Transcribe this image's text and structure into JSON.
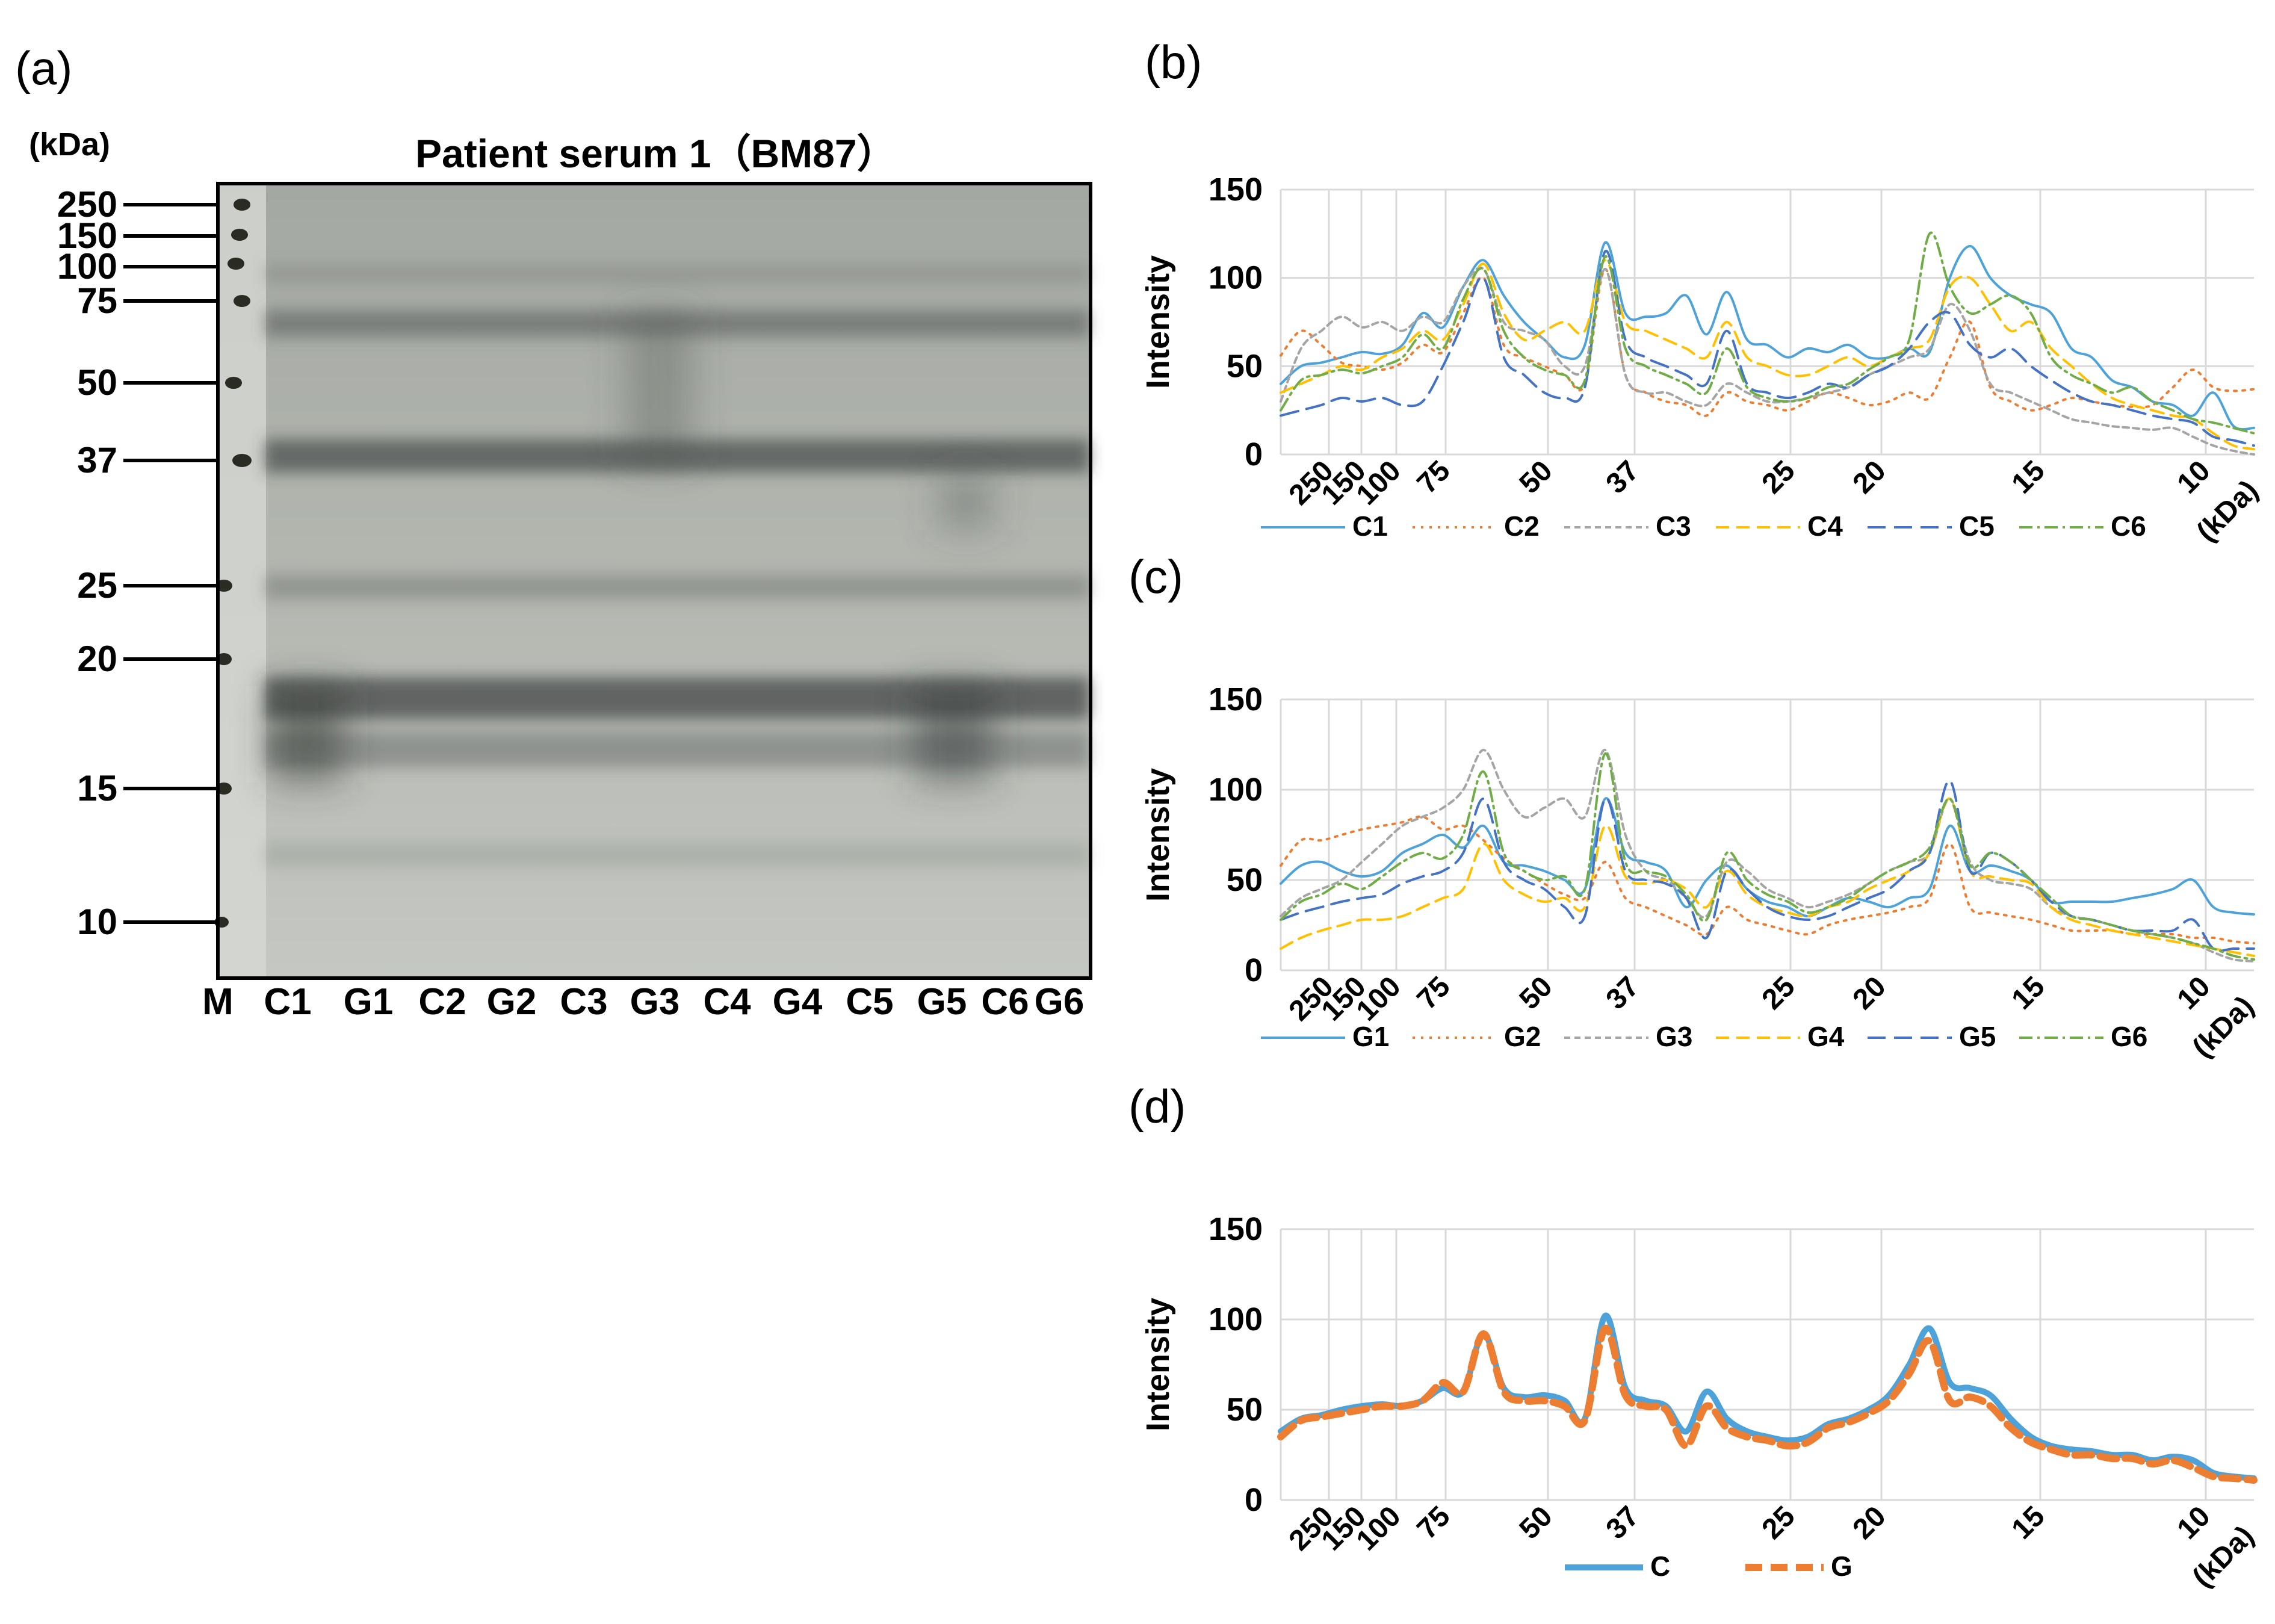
{
  "panel_a": {
    "label": "(a)",
    "unit": "(kDa)",
    "title": "Patient serum 1（BM87）",
    "markers": [
      "250",
      "150",
      "100",
      "75",
      "50",
      "37",
      "25",
      "20",
      "15",
      "10"
    ],
    "lanes": [
      "M",
      "C1",
      "G1",
      "C2",
      "G2",
      "C3",
      "G3",
      "C4",
      "G4",
      "C5",
      "G5",
      "C6",
      "G6"
    ]
  },
  "chart_data": [
    {
      "type": "line",
      "panel": "(b)",
      "ylabel": "Intensity",
      "ylim": [
        0,
        150
      ],
      "yticks": [
        "0",
        "50",
        "100",
        "150"
      ],
      "xticks": [
        "250",
        "150",
        "100",
        "75",
        "50",
        "37",
        "25",
        "20",
        "15",
        "10"
      ],
      "xunit": "(kDa)",
      "series": [
        {
          "name": "C1",
          "color": "#4da3d9",
          "dash": "",
          "width": 4,
          "values": [
            40,
            50,
            52,
            55,
            58,
            57,
            62,
            80,
            72,
            95,
            110,
            90,
            75,
            65,
            55,
            62,
            120,
            80,
            78,
            80,
            90,
            68,
            92,
            65,
            62,
            55,
            60,
            58,
            62,
            55,
            55,
            60,
            58,
            100,
            118,
            100,
            90,
            85,
            80,
            60,
            55,
            42,
            38,
            30,
            28,
            22,
            35,
            16,
            15
          ]
        },
        {
          "name": "C2",
          "color": "#ed7d31",
          "dash": "4 10",
          "width": 4,
          "values": [
            56,
            70,
            62,
            52,
            50,
            48,
            52,
            62,
            58,
            80,
            100,
            62,
            55,
            50,
            45,
            40,
            105,
            45,
            35,
            30,
            28,
            22,
            35,
            30,
            28,
            25,
            30,
            35,
            32,
            28,
            30,
            35,
            32,
            55,
            75,
            38,
            30,
            25,
            28,
            32,
            30,
            28,
            27,
            28,
            38,
            48,
            38,
            36,
            37
          ]
        },
        {
          "name": "C3",
          "color": "#a5a5a5",
          "dash": "10 7",
          "width": 4,
          "values": [
            30,
            60,
            70,
            78,
            72,
            75,
            70,
            78,
            75,
            95,
            105,
            75,
            70,
            65,
            50,
            50,
            105,
            45,
            35,
            35,
            30,
            28,
            40,
            35,
            30,
            30,
            32,
            35,
            38,
            45,
            50,
            55,
            60,
            85,
            70,
            40,
            35,
            30,
            25,
            20,
            18,
            16,
            15,
            14,
            15,
            10,
            5,
            2,
            0
          ]
        },
        {
          "name": "C4",
          "color": "#ffc000",
          "dash": "22 12",
          "width": 4,
          "values": [
            35,
            40,
            45,
            50,
            48,
            55,
            60,
            70,
            65,
            85,
            108,
            80,
            65,
            70,
            75,
            70,
            110,
            75,
            70,
            65,
            60,
            55,
            75,
            55,
            50,
            45,
            45,
            50,
            55,
            50,
            55,
            60,
            65,
            95,
            100,
            85,
            70,
            75,
            60,
            50,
            40,
            32,
            28,
            25,
            22,
            20,
            12,
            5,
            3
          ]
        },
        {
          "name": "C5",
          "color": "#4472c4",
          "dash": "30 14",
          "width": 4,
          "values": [
            22,
            25,
            28,
            32,
            30,
            32,
            28,
            30,
            50,
            75,
            100,
            55,
            45,
            35,
            32,
            38,
            115,
            65,
            55,
            50,
            45,
            40,
            70,
            40,
            35,
            32,
            35,
            40,
            38,
            45,
            50,
            60,
            75,
            80,
            62,
            55,
            60,
            50,
            42,
            35,
            30,
            28,
            25,
            22,
            20,
            18,
            10,
            8,
            5
          ]
        },
        {
          "name": "C6",
          "color": "#70ad47",
          "dash": "22 8 4 8",
          "width": 4,
          "values": [
            25,
            42,
            45,
            48,
            46,
            50,
            55,
            68,
            60,
            88,
            105,
            70,
            55,
            48,
            45,
            42,
            112,
            60,
            50,
            45,
            40,
            35,
            60,
            38,
            32,
            30,
            32,
            38,
            40,
            48,
            55,
            65,
            125,
            95,
            80,
            85,
            90,
            80,
            55,
            45,
            40,
            35,
            38,
            30,
            25,
            20,
            18,
            15,
            12
          ]
        }
      ]
    },
    {
      "type": "line",
      "panel": "(c)",
      "ylabel": "Intensity",
      "ylim": [
        0,
        150
      ],
      "yticks": [
        "0",
        "50",
        "100",
        "150"
      ],
      "xticks": [
        "250",
        "150",
        "100",
        "75",
        "50",
        "37",
        "25",
        "20",
        "15",
        "10"
      ],
      "xunit": "(kDa)",
      "series": [
        {
          "name": "G1",
          "color": "#4da3d9",
          "dash": "",
          "width": 4,
          "values": [
            48,
            58,
            60,
            55,
            52,
            55,
            65,
            70,
            75,
            68,
            80,
            60,
            58,
            55,
            50,
            45,
            95,
            65,
            60,
            55,
            35,
            50,
            58,
            45,
            38,
            35,
            30,
            35,
            40,
            38,
            35,
            40,
            45,
            80,
            55,
            58,
            55,
            50,
            38,
            38,
            38,
            38,
            40,
            42,
            45,
            50,
            35,
            32,
            31
          ]
        },
        {
          "name": "G2",
          "color": "#ed7d31",
          "dash": "4 10",
          "width": 4,
          "values": [
            58,
            72,
            72,
            75,
            78,
            80,
            82,
            85,
            78,
            80,
            72,
            62,
            55,
            48,
            42,
            40,
            60,
            40,
            35,
            30,
            25,
            20,
            35,
            28,
            25,
            22,
            20,
            25,
            28,
            30,
            32,
            35,
            40,
            70,
            35,
            32,
            30,
            28,
            25,
            22,
            22,
            22,
            20,
            20,
            20,
            18,
            18,
            16,
            15
          ]
        },
        {
          "name": "G3",
          "color": "#a5a5a5",
          "dash": "10 7",
          "width": 4,
          "values": [
            30,
            40,
            45,
            50,
            60,
            70,
            80,
            85,
            90,
            100,
            122,
            100,
            85,
            90,
            95,
            85,
            122,
            75,
            55,
            50,
            40,
            30,
            60,
            55,
            45,
            40,
            35,
            38,
            42,
            48,
            55,
            60,
            65,
            95,
            60,
            50,
            48,
            45,
            35,
            30,
            28,
            25,
            22,
            20,
            18,
            15,
            10,
            6,
            5
          ]
        },
        {
          "name": "G4",
          "color": "#ffc000",
          "dash": "22 12",
          "width": 4,
          "values": [
            12,
            18,
            22,
            25,
            28,
            28,
            30,
            35,
            40,
            45,
            70,
            50,
            42,
            38,
            40,
            35,
            80,
            52,
            48,
            50,
            45,
            35,
            55,
            42,
            35,
            32,
            30,
            35,
            38,
            45,
            50,
            55,
            65,
            95,
            55,
            52,
            50,
            48,
            35,
            28,
            25,
            22,
            20,
            18,
            16,
            14,
            12,
            10,
            8
          ]
        },
        {
          "name": "G5",
          "color": "#4472c4",
          "dash": "30 14",
          "width": 4,
          "values": [
            28,
            32,
            35,
            38,
            40,
            42,
            48,
            52,
            55,
            65,
            95,
            60,
            50,
            45,
            35,
            30,
            95,
            55,
            50,
            48,
            40,
            18,
            55,
            45,
            35,
            30,
            28,
            30,
            35,
            40,
            45,
            55,
            65,
            105,
            55,
            65,
            60,
            50,
            38,
            30,
            28,
            25,
            22,
            22,
            22,
            28,
            12,
            12,
            12
          ]
        },
        {
          "name": "G6",
          "color": "#70ad47",
          "dash": "22 8 4 8",
          "width": 4,
          "values": [
            28,
            38,
            42,
            48,
            45,
            52,
            60,
            65,
            62,
            75,
            110,
            65,
            55,
            50,
            52,
            45,
            120,
            60,
            55,
            52,
            42,
            28,
            65,
            50,
            42,
            38,
            32,
            35,
            40,
            48,
            55,
            60,
            68,
            95,
            58,
            65,
            60,
            50,
            40,
            30,
            28,
            25,
            22,
            20,
            18,
            15,
            12,
            8,
            6
          ]
        }
      ]
    },
    {
      "type": "line",
      "panel": "(d)",
      "ylabel": "Intensity",
      "ylim": [
        0,
        150
      ],
      "yticks": [
        "0",
        "50",
        "100",
        "150"
      ],
      "xticks": [
        "250",
        "150",
        "100",
        "75",
        "50",
        "37",
        "25",
        "20",
        "15",
        "10"
      ],
      "xunit": "(kDa)",
      "series": [
        {
          "name": "C",
          "color": "#4da3d9",
          "dash": "",
          "width": 10,
          "values": [
            38,
            45,
            47,
            50,
            52,
            53,
            52,
            55,
            62,
            60,
            92,
            62,
            57,
            58,
            55,
            45,
            102,
            62,
            55,
            52,
            38,
            60,
            45,
            38,
            35,
            33,
            35,
            42,
            45,
            50,
            58,
            75,
            95,
            65,
            62,
            58,
            45,
            35,
            30,
            28,
            27,
            25,
            25,
            22,
            24,
            22,
            15,
            13,
            12
          ]
        },
        {
          "name": "G",
          "color": "#ed7d31",
          "dash": "28 14",
          "width": 12,
          "values": [
            35,
            44,
            46,
            48,
            50,
            52,
            52,
            55,
            65,
            60,
            92,
            60,
            55,
            55,
            52,
            44,
            95,
            58,
            52,
            50,
            30,
            52,
            40,
            35,
            33,
            30,
            32,
            40,
            43,
            48,
            55,
            70,
            88,
            55,
            57,
            52,
            40,
            32,
            28,
            25,
            25,
            23,
            23,
            20,
            22,
            18,
            13,
            12,
            11
          ]
        }
      ]
    }
  ]
}
